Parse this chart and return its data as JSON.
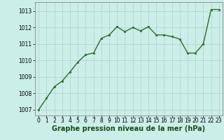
{
  "x": [
    0,
    1,
    2,
    3,
    4,
    5,
    6,
    7,
    8,
    9,
    10,
    11,
    12,
    13,
    14,
    15,
    16,
    17,
    18,
    19,
    20,
    21,
    22,
    23
  ],
  "y": [
    1007.0,
    1007.7,
    1008.4,
    1008.75,
    1009.3,
    1009.9,
    1010.35,
    1010.45,
    1011.35,
    1011.55,
    1012.05,
    1011.75,
    1012.0,
    1011.8,
    1012.05,
    1011.55,
    1011.55,
    1011.45,
    1011.3,
    1010.45,
    1010.45,
    1011.0,
    1013.1,
    1013.1
  ],
  "line_color": "#2d6a2d",
  "marker": "s",
  "marker_size": 2.0,
  "bg_color": "#cceee8",
  "grid_color": "#b0d8cc",
  "xlabel": "Graphe pression niveau de la mer (hPa)",
  "xlabel_fontsize": 7,
  "yticks": [
    1007,
    1008,
    1009,
    1010,
    1011,
    1012,
    1013
  ],
  "xticks": [
    0,
    1,
    2,
    3,
    4,
    5,
    6,
    7,
    8,
    9,
    10,
    11,
    12,
    13,
    14,
    15,
    16,
    17,
    18,
    19,
    20,
    21,
    22,
    23
  ],
  "ylim": [
    1006.65,
    1013.55
  ],
  "xlim": [
    -0.5,
    23.5
  ],
  "tick_fontsize": 5.5,
  "line_width": 1.0
}
